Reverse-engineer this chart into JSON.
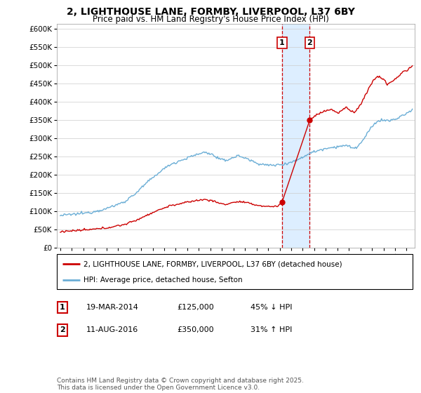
{
  "title": "2, LIGHTHOUSE LANE, FORMBY, LIVERPOOL, L37 6BY",
  "subtitle": "Price paid vs. HM Land Registry's House Price Index (HPI)",
  "legend_line1": "2, LIGHTHOUSE LANE, FORMBY, LIVERPOOL, L37 6BY (detached house)",
  "legend_line2": "HPI: Average price, detached house, Sefton",
  "footnote": "Contains HM Land Registry data © Crown copyright and database right 2025.\nThis data is licensed under the Open Government Licence v3.0.",
  "transaction1_label": "1",
  "transaction1_date": "19-MAR-2014",
  "transaction1_price": "£125,000",
  "transaction1_hpi": "45% ↓ HPI",
  "transaction2_label": "2",
  "transaction2_date": "11-AUG-2016",
  "transaction2_price": "£350,000",
  "transaction2_hpi": "31% ↑ HPI",
  "hpi_color": "#6baed6",
  "price_color": "#cc0000",
  "marker_color": "#cc0000",
  "vline_color": "#cc0000",
  "highlight_color": "#ddeeff",
  "ylim": [
    0,
    615000
  ],
  "yticks": [
    0,
    50000,
    100000,
    150000,
    200000,
    250000,
    300000,
    350000,
    400000,
    450000,
    500000,
    550000,
    600000
  ],
  "transaction1_x": 2014.21,
  "transaction2_x": 2016.61,
  "transaction1_y": 125000,
  "transaction2_y": 350000,
  "xlim_left": 1994.7,
  "xlim_right": 2025.7
}
